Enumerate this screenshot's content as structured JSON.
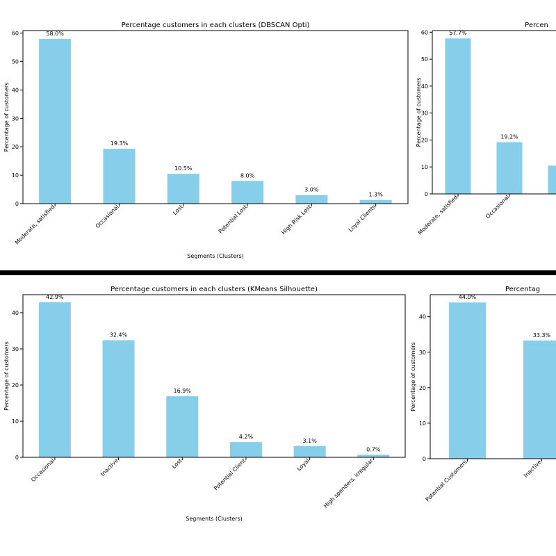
{
  "colors": {
    "bar": "#87ceeb",
    "divider": "#000000"
  },
  "chart_data": [
    {
      "type": "bar",
      "title": "Percentage customers in each clusters (DBSCAN Opti)",
      "xlabel": "Segments (Clusters)",
      "ylabel": "Percentage of customers",
      "categories": [
        "Moderate, satisfied",
        "Occasional",
        "Lost",
        "Potential Lost",
        "High Risk Lost",
        "Loyal Clients"
      ],
      "values": [
        58.0,
        19.3,
        10.5,
        8.0,
        3.0,
        1.3
      ],
      "data_labels": [
        "58.0%",
        "19.3%",
        "10.5%",
        "8.0%",
        "3.0%",
        "1.3%"
      ],
      "yticks": [
        0,
        10,
        20,
        30,
        40,
        50,
        60
      ],
      "ylim": [
        0,
        60.9
      ]
    },
    {
      "type": "bar",
      "title": "Percen",
      "xlabel": "",
      "ylabel": "Percentage of customers",
      "categories": [
        "Moderate, satisfied",
        "Occasional",
        ""
      ],
      "values": [
        57.7,
        19.2,
        10.5
      ],
      "data_labels": [
        "57.7%",
        "19.2%",
        ""
      ],
      "yticks": [
        0,
        10,
        20,
        30,
        40,
        50,
        60
      ],
      "ylim": [
        0,
        60.6
      ]
    },
    {
      "type": "bar",
      "title": "Percentage customers in each clusters (KMeans Silhouette)",
      "xlabel": "Segments (Clusters)",
      "ylabel": "Percentage of customers",
      "categories": [
        "Occasional",
        "Inactive",
        "Lost",
        "Potential Client",
        "Loyal",
        "High spenders, irregular"
      ],
      "values": [
        42.9,
        32.4,
        16.9,
        4.2,
        3.1,
        0.7
      ],
      "data_labels": [
        "42.9%",
        "32.4%",
        "16.9%",
        "4.2%",
        "3.1%",
        "0.7%"
      ],
      "yticks": [
        0,
        10,
        20,
        30,
        40
      ],
      "ylim": [
        0,
        45.0
      ]
    },
    {
      "type": "bar",
      "title": "Percentag",
      "xlabel": "",
      "ylabel": "Percentage of customers",
      "categories": [
        "Potential Customers",
        "Inactive"
      ],
      "values": [
        44.0,
        33.3
      ],
      "data_labels": [
        "44.0%",
        "33.3%"
      ],
      "yticks": [
        0,
        10,
        20,
        30,
        40
      ],
      "ylim": [
        0,
        46.2
      ]
    }
  ]
}
